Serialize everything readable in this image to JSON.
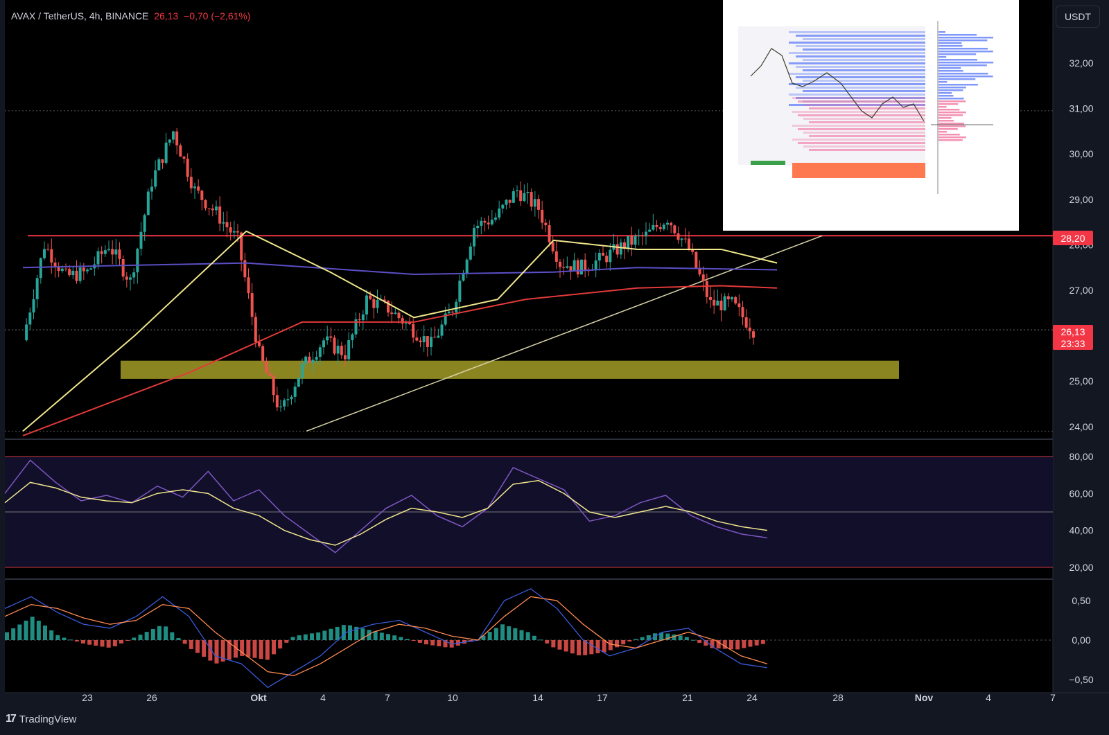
{
  "header": {
    "symbol": "AVAX / TetherUS, 4h, BINANCE",
    "last": "26,13",
    "change": "−0,70 (−2,61%)"
  },
  "currency_button": "USDT",
  "brand": "TradingView",
  "price_tags": {
    "resistance": "28,20",
    "current": "26,13",
    "countdown": "23:33"
  },
  "colors": {
    "background": "#000000",
    "bull": "#26a69a",
    "bear": "#ef5350",
    "ema_fast": "#f0e68c",
    "ema_mid": "#5b4fc7",
    "ema_slow": "#e23a3a",
    "support_zone": "#8b8521",
    "resistance_line": "#f23645",
    "trendline": "#d8d3a8"
  },
  "chart_data": [
    {
      "type": "candlestick",
      "title": "AVAX / TetherUS, 4h, BINANCE",
      "y_ticks": [
        "32,00",
        "31,00",
        "30,00",
        "29,00",
        "28,00",
        "27,00",
        "25,00",
        "24,00"
      ],
      "x_ticks": [
        "23",
        "26",
        "Okt",
        "4",
        "7",
        "10",
        "14",
        "17",
        "21",
        "24",
        "28",
        "Nov",
        "4",
        "7"
      ],
      "ylim": [
        23.85,
        33.3
      ],
      "resistance_level": 28.2,
      "support_zone": [
        25.05,
        25.45
      ],
      "current_price": 26.13,
      "dotted_high_level": 30.95,
      "dotted_low_level": 23.9,
      "trendline": {
        "from": [
          "Okt 3",
          23.9
        ],
        "to": [
          "Okt 27",
          28.2
        ]
      },
      "swing_points": [
        {
          "date": "Sep 20",
          "close": 25.9
        },
        {
          "date": "Sep 21",
          "close": 28.0
        },
        {
          "date": "Sep 23",
          "close": 27.3
        },
        {
          "date": "Sep 24",
          "close": 27.4
        },
        {
          "date": "Sep 25",
          "close": 28.0
        },
        {
          "date": "Sep 26",
          "close": 27.2
        },
        {
          "date": "Sep 27",
          "close": 29.4
        },
        {
          "date": "Sep 28",
          "close": 30.5
        },
        {
          "date": "Sep 29",
          "close": 29.2
        },
        {
          "date": "Sep 30",
          "close": 28.7
        },
        {
          "date": "Okt 1",
          "close": 28.1
        },
        {
          "date": "Okt 2",
          "close": 25.6
        },
        {
          "date": "Okt 3",
          "close": 24.3
        },
        {
          "date": "Okt 4",
          "close": 25.3
        },
        {
          "date": "Okt 5",
          "close": 25.9
        },
        {
          "date": "Okt 6",
          "close": 25.6
        },
        {
          "date": "Okt 7",
          "close": 26.8
        },
        {
          "date": "Okt 8",
          "close": 26.6
        },
        {
          "date": "Okt 9",
          "close": 26.2
        },
        {
          "date": "Okt 10",
          "close": 25.8
        },
        {
          "date": "Okt 11",
          "close": 26.6
        },
        {
          "date": "Okt 12",
          "close": 28.4
        },
        {
          "date": "Okt 13",
          "close": 28.6
        },
        {
          "date": "Okt 14",
          "close": 29.2
        },
        {
          "date": "Okt 15",
          "close": 28.8
        },
        {
          "date": "Okt 16",
          "close": 27.6
        },
        {
          "date": "Okt 17",
          "close": 27.5
        },
        {
          "date": "Okt 18",
          "close": 27.7
        },
        {
          "date": "Okt 19",
          "close": 28.0
        },
        {
          "date": "Okt 20",
          "close": 28.2
        },
        {
          "date": "Okt 21",
          "close": 28.6
        },
        {
          "date": "Okt 22",
          "close": 27.9
        },
        {
          "date": "Okt 23",
          "close": 26.7
        },
        {
          "date": "Okt 24",
          "close": 26.7
        },
        {
          "date": "Okt 25",
          "close": 26.13
        }
      ],
      "ema_fast_points": [
        [
          0,
          23.9
        ],
        [
          4,
          26.0
        ],
        [
          8,
          28.3
        ],
        [
          11,
          27.4
        ],
        [
          14,
          26.4
        ],
        [
          17,
          26.8
        ],
        [
          19,
          28.1
        ],
        [
          22,
          27.9
        ],
        [
          25,
          27.9
        ],
        [
          27,
          27.6
        ]
      ],
      "ema_mid_points": [
        [
          0,
          27.5
        ],
        [
          8,
          27.6
        ],
        [
          14,
          27.35
        ],
        [
          19,
          27.4
        ],
        [
          22,
          27.5
        ],
        [
          27,
          27.45
        ]
      ],
      "ema_slow_points": [
        [
          0,
          23.8
        ],
        [
          6,
          25.2
        ],
        [
          10,
          26.3
        ],
        [
          14,
          26.3
        ],
        [
          18,
          26.8
        ],
        [
          22,
          27.05
        ],
        [
          25,
          27.1
        ],
        [
          27,
          27.05
        ]
      ]
    },
    {
      "type": "line",
      "title": "RSI",
      "y_ticks": [
        "80,00",
        "60,00",
        "40,00",
        "20,00"
      ],
      "bands": [
        80,
        50,
        20
      ],
      "series": [
        {
          "values": [
            60,
            78,
            66,
            56,
            59,
            55,
            64,
            58,
            72,
            56,
            62,
            48,
            38,
            28,
            40,
            52,
            59,
            48,
            42,
            52,
            74,
            68,
            62,
            45,
            48,
            55,
            59,
            48,
            42,
            38,
            36
          ]
        },
        {
          "values": [
            55,
            66,
            63,
            58,
            56,
            55,
            60,
            62,
            60,
            52,
            48,
            40,
            35,
            32,
            38,
            46,
            52,
            50,
            47,
            52,
            65,
            67,
            60,
            50,
            47,
            50,
            53,
            50,
            45,
            42,
            40
          ]
        }
      ]
    },
    {
      "type": "bar",
      "title": "MACD",
      "y_ticks": [
        "0,50",
        "0,00",
        "−0,50"
      ],
      "series": [
        {
          "values": [
            0.4,
            0.55,
            0.35,
            0.2,
            0.15,
            0.3,
            0.55,
            0.3,
            -0.2,
            -0.3,
            -0.6,
            -0.4,
            -0.2,
            0.1,
            0.2,
            0.25,
            0.1,
            -0.05,
            0.0,
            0.5,
            0.65,
            0.4,
            0.0,
            -0.2,
            -0.1,
            0.1,
            0.15,
            -0.1,
            -0.3,
            -0.35
          ]
        },
        {
          "values": [
            0.3,
            0.45,
            0.4,
            0.28,
            0.2,
            0.25,
            0.45,
            0.4,
            0.1,
            -0.15,
            -0.4,
            -0.45,
            -0.3,
            -0.1,
            0.1,
            0.2,
            0.15,
            0.05,
            0.0,
            0.3,
            0.55,
            0.5,
            0.2,
            -0.05,
            -0.1,
            0.0,
            0.1,
            0.0,
            -0.2,
            -0.3
          ]
        },
        {
          "values": [
            0.1,
            0.3,
            0.05,
            -0.05,
            -0.1,
            0.05,
            0.2,
            -0.1,
            -0.3,
            -0.2,
            -0.25,
            0.05,
            0.1,
            0.2,
            0.12,
            0.05,
            -0.05,
            -0.1,
            0.0,
            0.2,
            0.1,
            -0.1,
            -0.2,
            -0.15,
            0.0,
            0.1,
            0.05,
            -0.1,
            -0.12,
            -0.05
          ]
        }
      ]
    }
  ]
}
